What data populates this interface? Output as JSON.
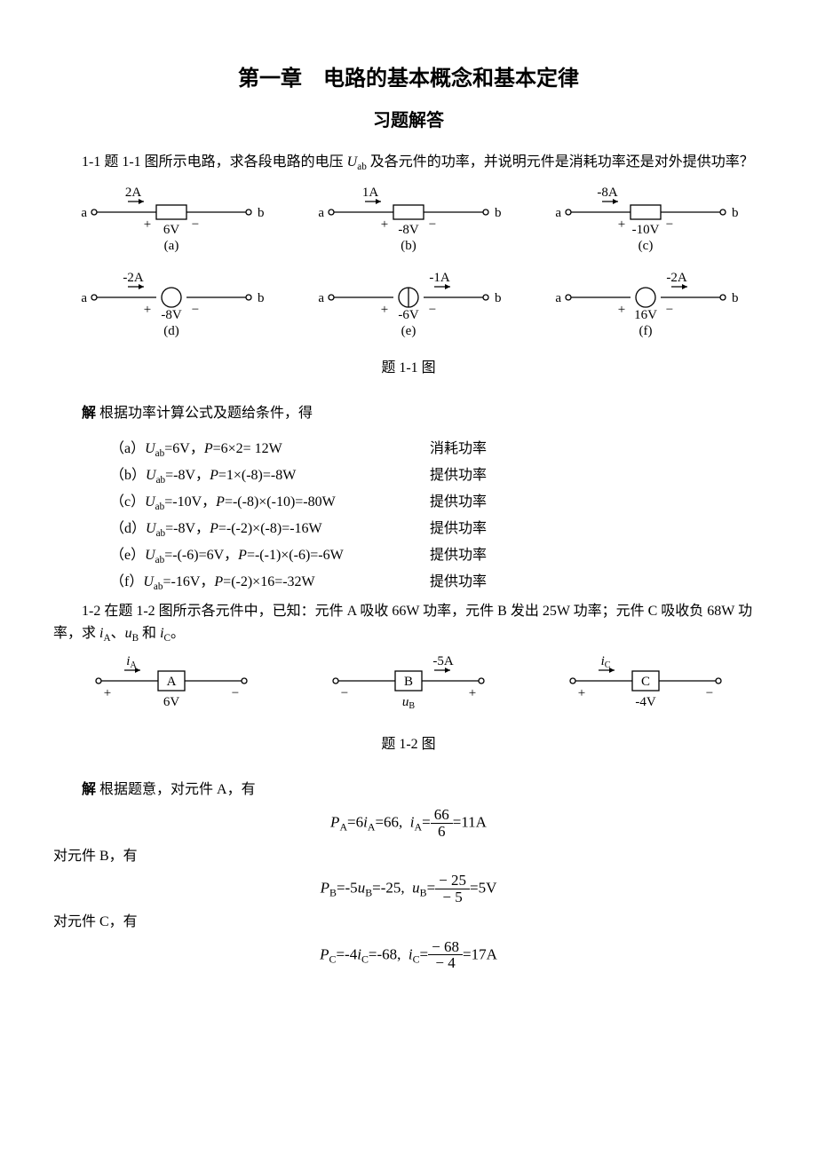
{
  "doc": {
    "chapter_title": "第一章　电路的基本概念和基本定律",
    "subtitle": "习题解答",
    "p1_1_text_a": "1-1 题 1-1 图所示电路，求各段电路的电压 ",
    "p1_1_text_b": " 及各元件的功率，并说明元件是消耗功率还是对外提供功率？",
    "fig1_caption": "题 1-1 图",
    "solve_label": "解",
    "solve_intro1": " 根据功率计算公式及题给条件，得",
    "sol_a": "（a）",
    "sol_b": "（b）",
    "sol_c": "（c）",
    "sol_d": "（d）",
    "sol_e": "（e）",
    "sol_f": "（f）",
    "consume": "消耗功率",
    "provide": "提供功率",
    "p1_2_text_a": "1-2 在题 1-2 图所示各元件中，已知：元件 A 吸收 66W 功率，元件 B 发出 25W 功率；元件 C 吸收负 68W 功率，求 ",
    "p1_2_text_b": "、",
    "p1_2_text_c": " 和 ",
    "p1_2_text_d": "。",
    "fig2_caption": "题 1-2 图",
    "solve_intro2": " 根据题意，对元件 A，有",
    "line_B": "对元件 B，有",
    "line_C": "对元件 C，有"
  },
  "fig1": {
    "items": [
      {
        "id": "a",
        "current": "2A",
        "voltage": "6V",
        "kind": "box",
        "i_dir": "right"
      },
      {
        "id": "b",
        "current": "1A",
        "voltage": "-8V",
        "kind": "box",
        "i_dir": "right"
      },
      {
        "id": "c",
        "current": "-8A",
        "voltage": "-10V",
        "kind": "box",
        "i_dir": "right"
      },
      {
        "id": "d",
        "current": "-2A",
        "voltage": "-8V",
        "kind": "circle",
        "i_dir": "right"
      },
      {
        "id": "e",
        "current": "-1A",
        "voltage": "-6V",
        "kind": "circle-i",
        "i_dir": "right"
      },
      {
        "id": "f",
        "current": "-2A",
        "voltage": "16V",
        "kind": "circle",
        "i_dir": "right"
      }
    ]
  },
  "fig2": {
    "items": [
      {
        "label": "A",
        "i_label": "iA",
        "v_label": "6V",
        "signs": "pm",
        "i_side": "left"
      },
      {
        "label": "B",
        "i_label": "-5A",
        "v_label": "uB",
        "signs": "mp",
        "i_side": "rightcur",
        "i_style": "italic_v"
      },
      {
        "label": "C",
        "i_label": "iC",
        "v_label": "-4V",
        "signs": "pm",
        "i_side": "left"
      }
    ]
  },
  "solutions1": [
    {
      "key": "a",
      "expr": "Uab=6V，P=6×2= 12W",
      "res": "consume"
    },
    {
      "key": "b",
      "expr": "Uab=-8V，P=1×(-8)=-8W",
      "res": "provide"
    },
    {
      "key": "c",
      "expr": "Uab=-10V，P=-(-8)×(-10)=-80W",
      "res": "provide"
    },
    {
      "key": "d",
      "expr": "Uab=-8V，P=-(-2)×(-8)=-16W",
      "res": "provide"
    },
    {
      "key": "e",
      "expr": "Uab=-(-6)=6V，P=-(-1)×(-6)=-6W",
      "res": "provide"
    },
    {
      "key": "f",
      "expr": "Uab=-16V，P=(-2)×16=-32W",
      "res": "provide"
    }
  ],
  "eq": {
    "A": {
      "lhs": "PA=6iA=66,　iA=",
      "num": "66",
      "den": "6",
      "rhs": "=11A"
    },
    "B": {
      "lhs": "PB=-5uB=-25,　uB=",
      "num": "− 25",
      "den": "− 5",
      "rhs": "=5V"
    },
    "C": {
      "lhs": "PC=-4iC=-68,　iC=",
      "num": "− 68",
      "den": "− 4",
      "rhs": "=17A"
    }
  },
  "style": {
    "colors": {
      "bg": "#ffffff",
      "text": "#000000",
      "stroke": "#000000"
    },
    "fontsize_body": 16,
    "fontsize_h1": 24,
    "fontsize_h2": 20,
    "line_width": 1.2
  }
}
